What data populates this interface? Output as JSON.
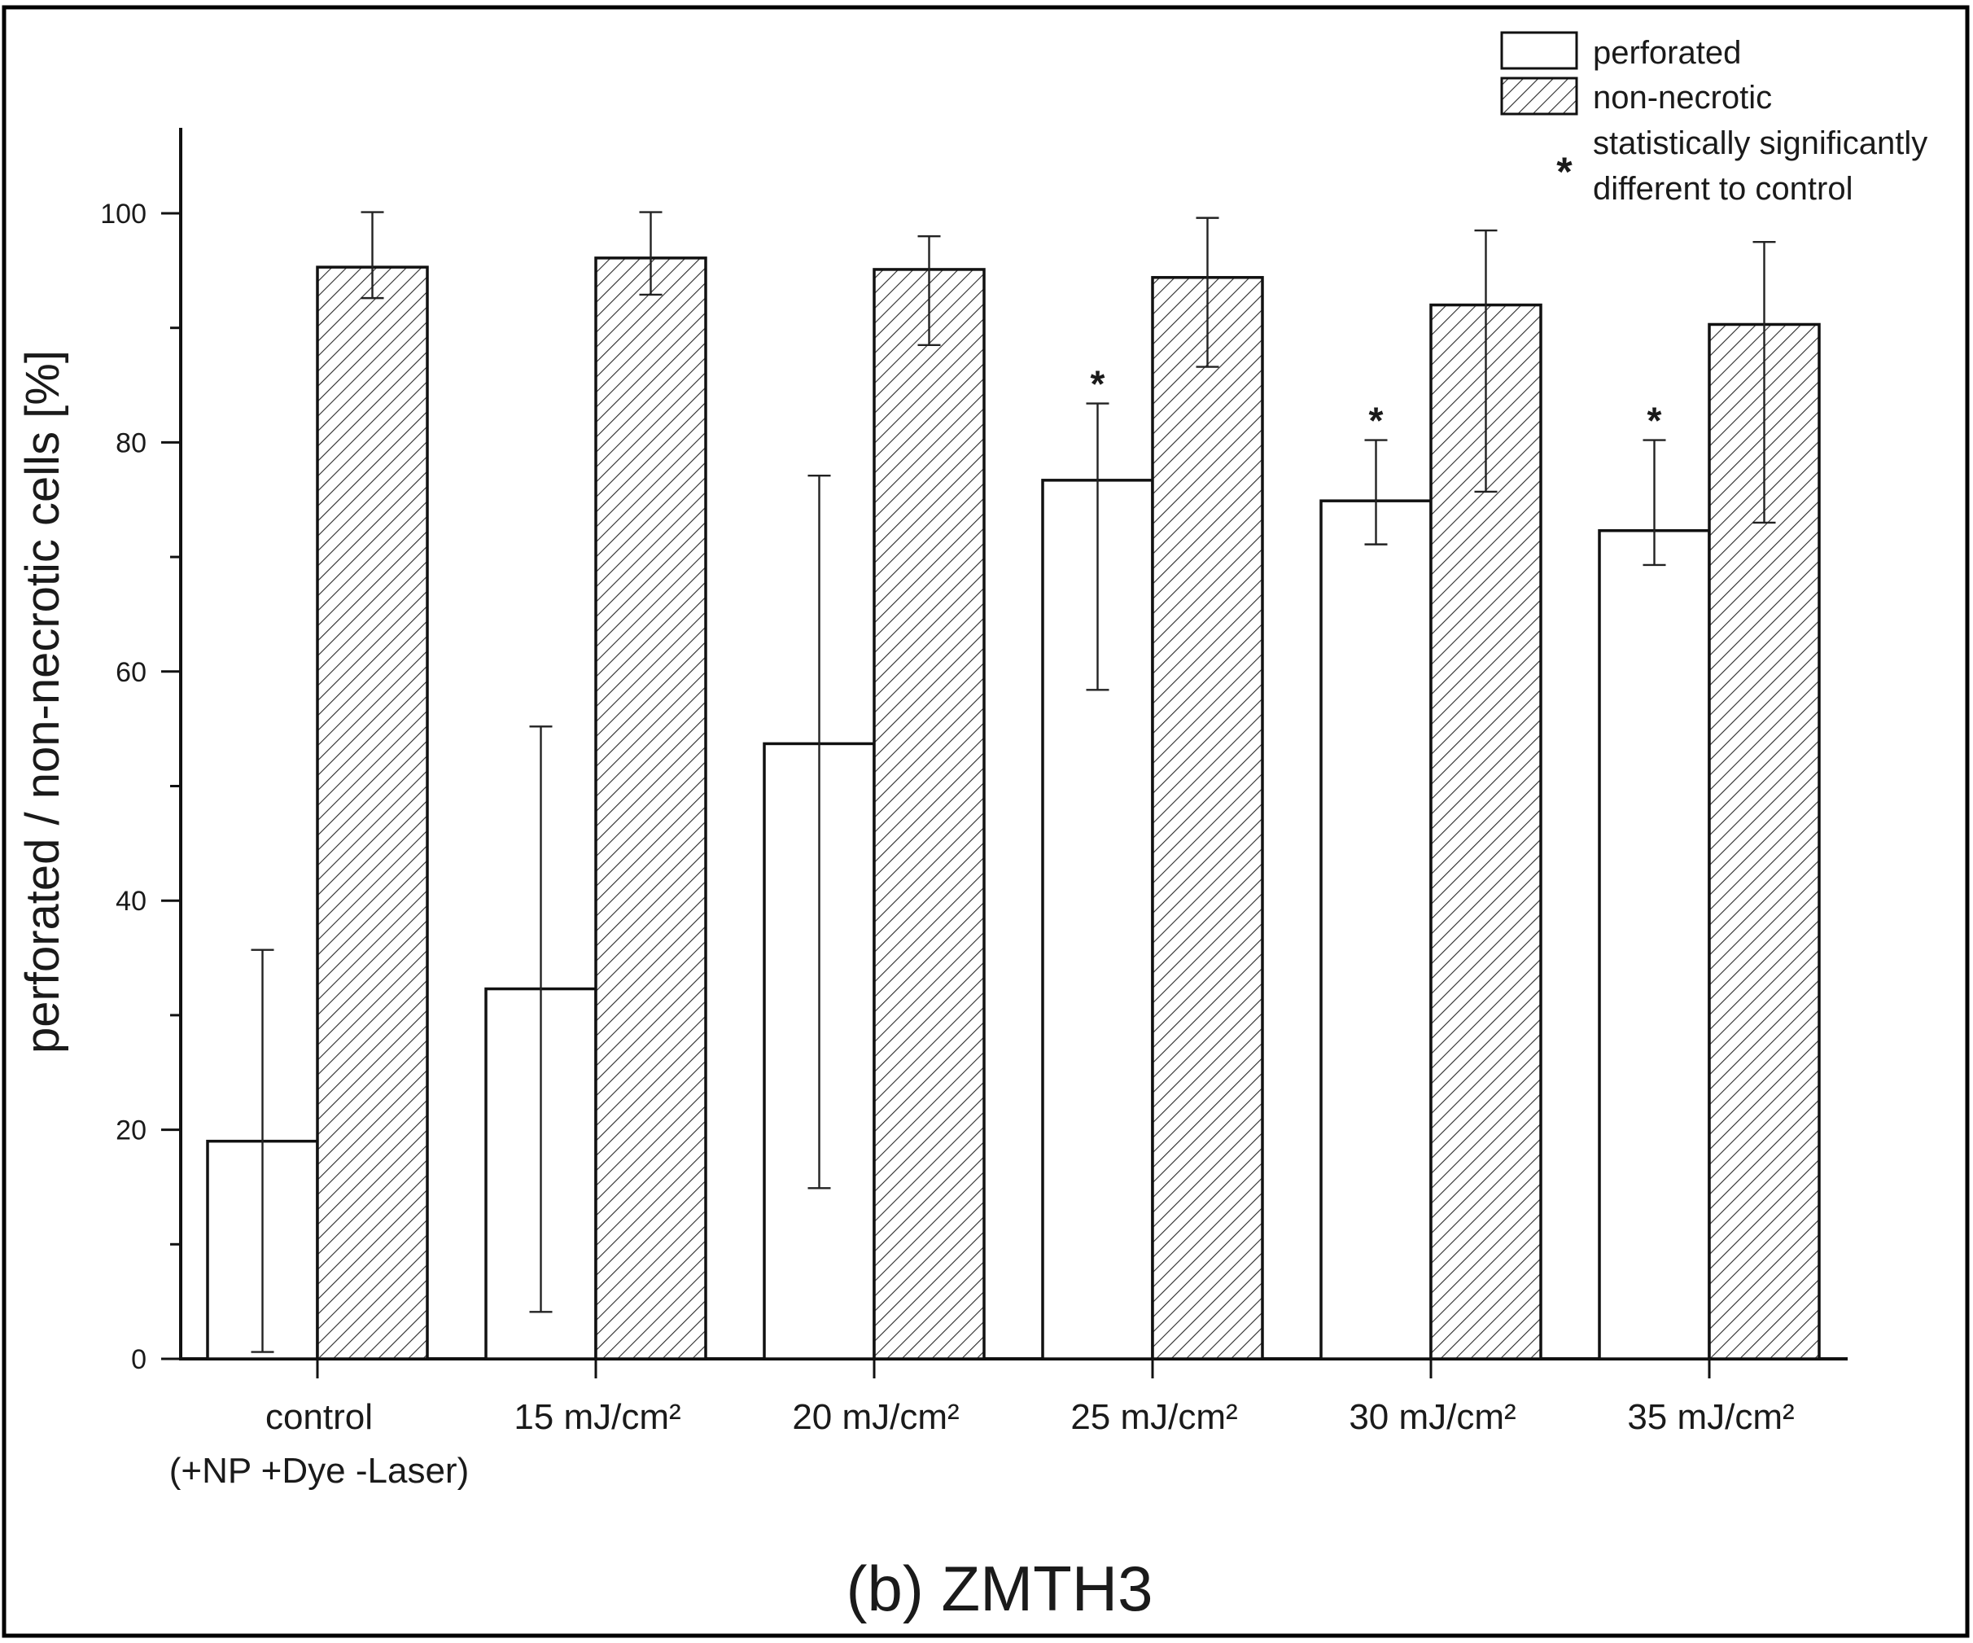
{
  "chart_data": {
    "type": "bar",
    "caption": "(b) ZMTH3",
    "ylabel": "perforated / non-necrotic cells [%]",
    "xlabel": "",
    "ylim": [
      0,
      107
    ],
    "yticks": [
      0,
      20,
      40,
      60,
      80,
      100
    ],
    "categories": [
      [
        "control",
        "(+NP +Dye -Laser)"
      ],
      [
        "15 mJ/cm²"
      ],
      [
        "20 mJ/cm²"
      ],
      [
        "25 mJ/cm²"
      ],
      [
        "30 mJ/cm²"
      ],
      [
        "35 mJ/cm²"
      ]
    ],
    "series": [
      {
        "name": "perforated",
        "fill": "open",
        "values": [
          19.0,
          32.3,
          53.7,
          76.7,
          74.9,
          72.3
        ],
        "error_low": [
          0.6,
          4.1,
          14.9,
          58.4,
          71.1,
          69.3
        ],
        "error_high": [
          35.7,
          55.2,
          77.1,
          83.4,
          80.2,
          80.2
        ]
      },
      {
        "name": "non-necrotic",
        "fill": "hatched",
        "values": [
          95.3,
          96.1,
          95.1,
          94.4,
          92.0,
          90.3
        ],
        "error_low": [
          92.6,
          92.9,
          88.5,
          86.6,
          75.7,
          73.0
        ],
        "error_high": [
          100.1,
          100.1,
          98.0,
          99.6,
          98.5,
          97.5
        ]
      }
    ],
    "significance": {
      "marker": "*",
      "series": "perforated",
      "categories": [
        3,
        4,
        5
      ],
      "legend_label": [
        "statistically significantly",
        "different to control"
      ]
    },
    "legend_position": "top-right",
    "grid": false
  }
}
